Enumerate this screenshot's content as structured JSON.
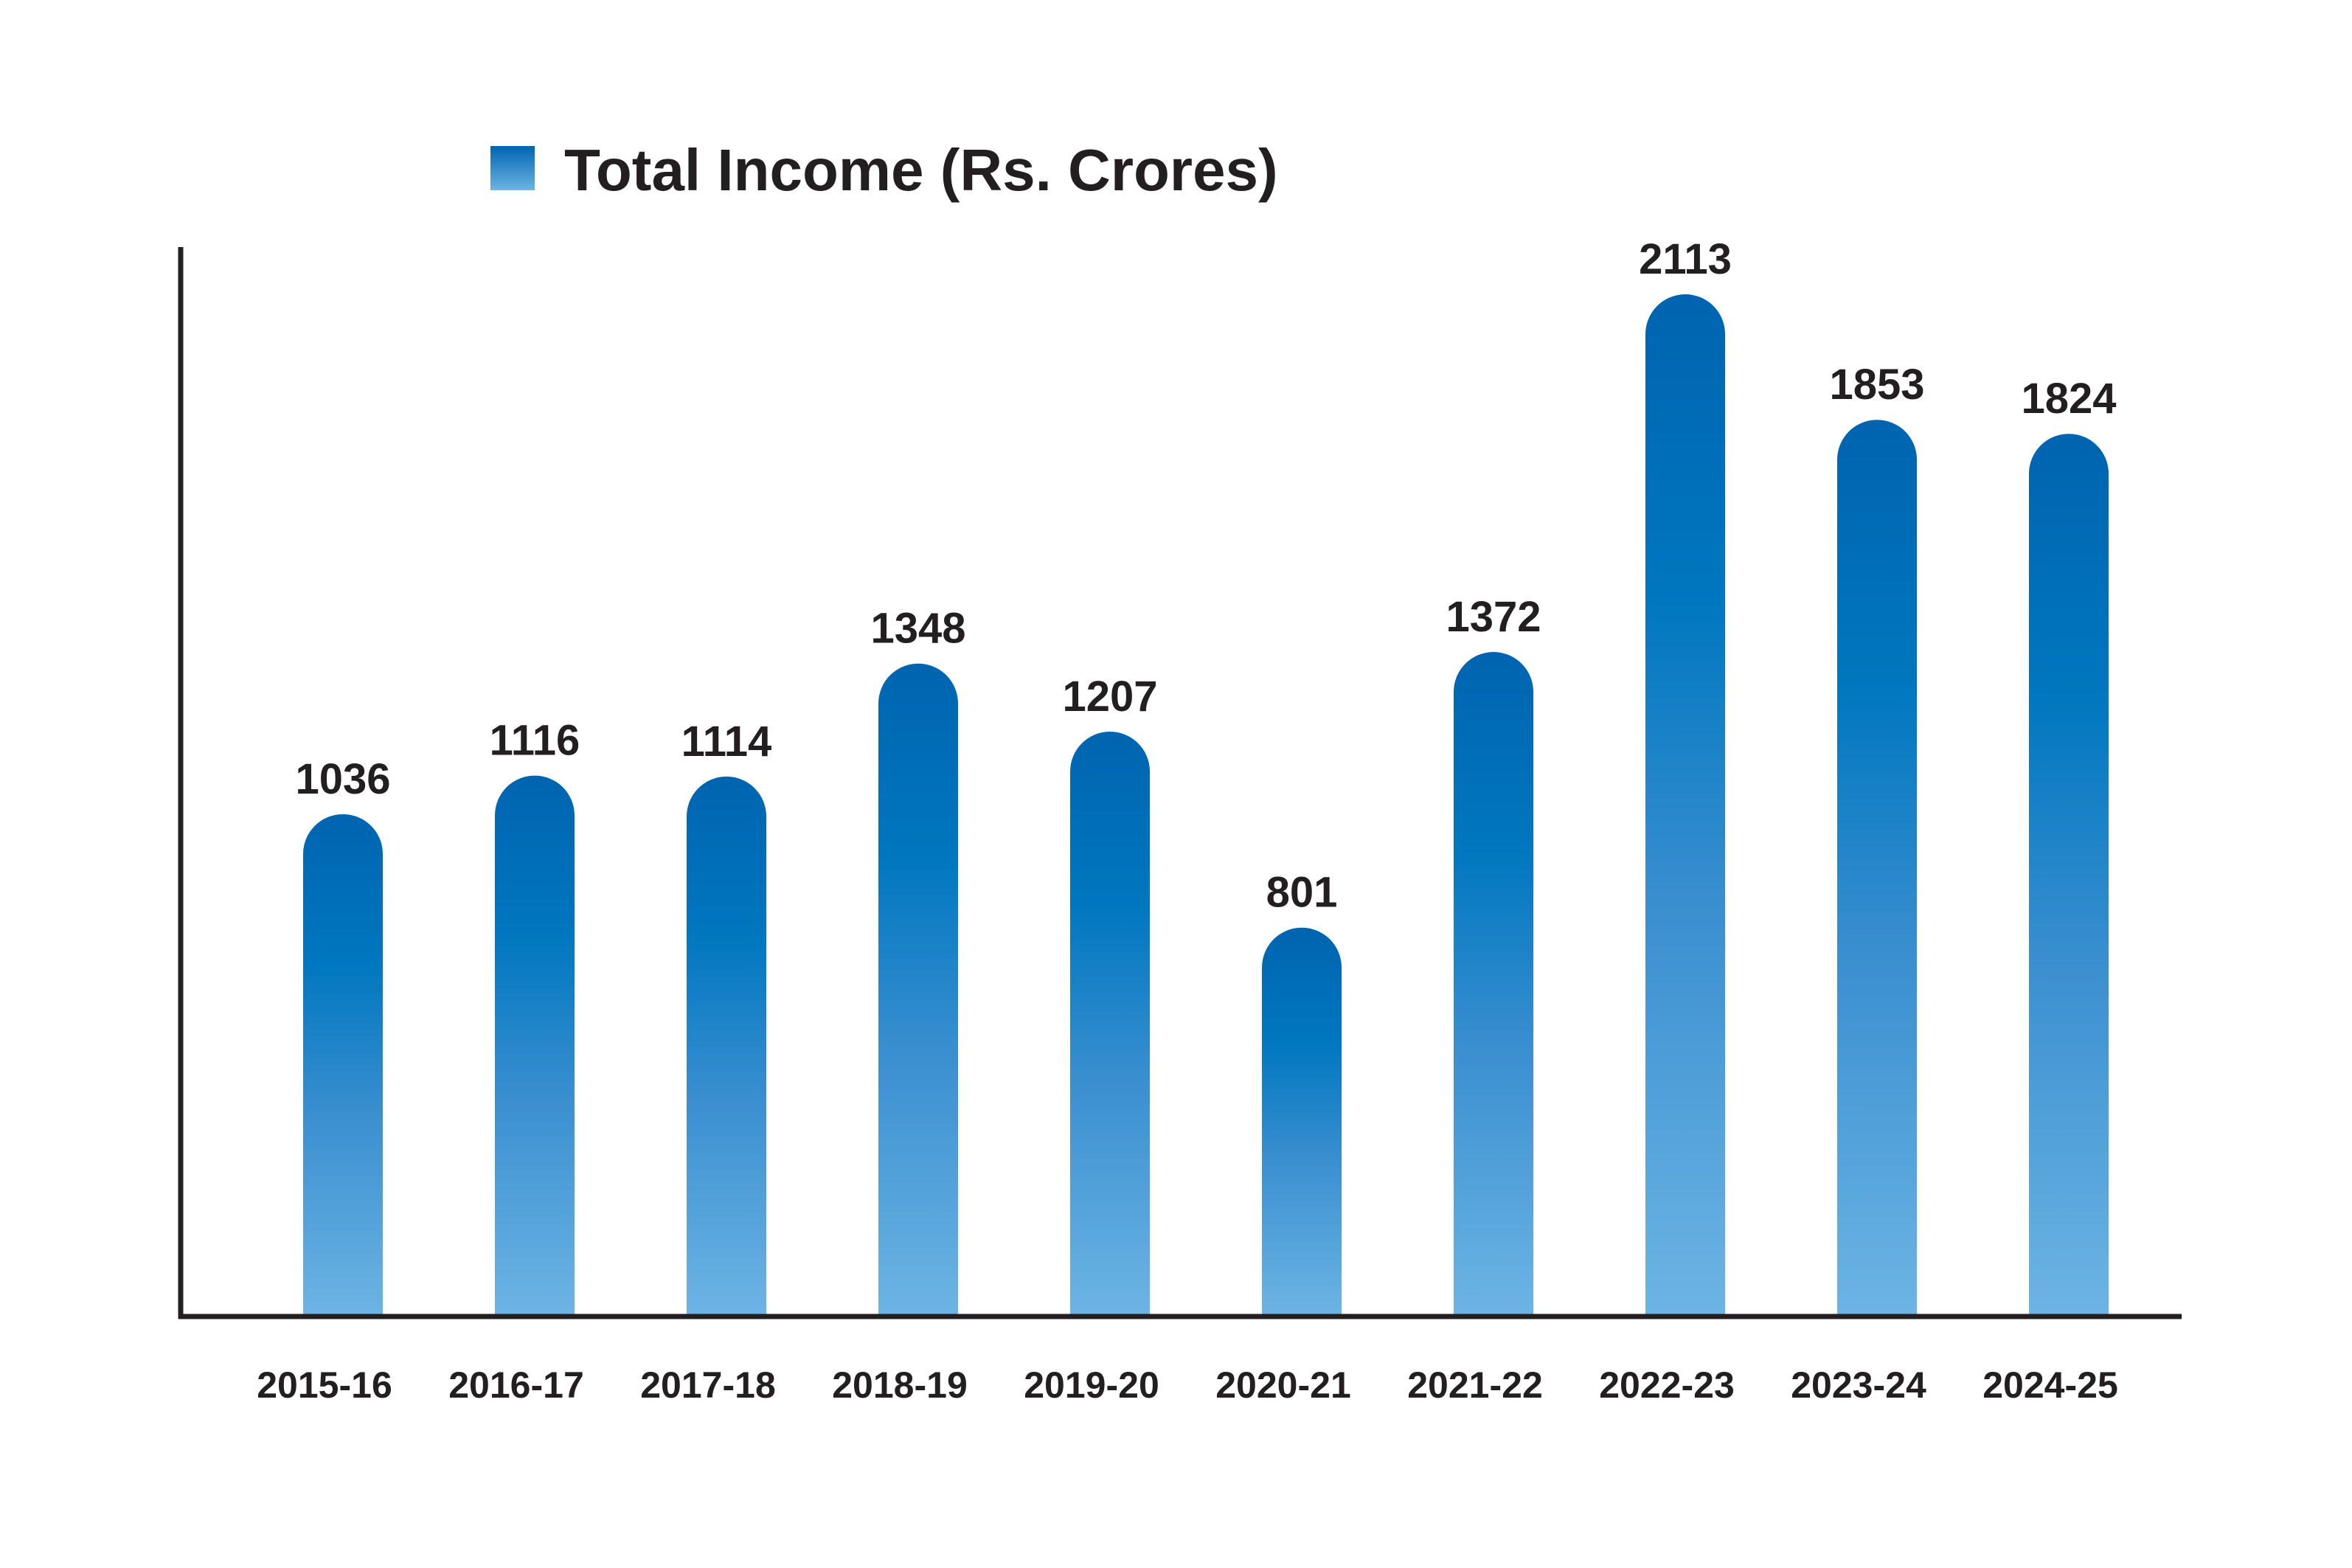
{
  "chart_data": {
    "type": "bar",
    "categories": [
      "2015-16",
      "2016-17",
      "2017-18",
      "2018-19",
      "2019-20",
      "2020-21",
      "2021-22",
      "2022-23",
      "2023-24",
      "2024-25"
    ],
    "series": [
      {
        "name": "Total Income (Rs. Crores)",
        "values": [
          1036,
          1116,
          1114,
          1348,
          1207,
          801,
          1372,
          2113,
          1853,
          1824
        ]
      }
    ],
    "title": "",
    "xlabel": "",
    "ylabel": "",
    "ylim": [
      0,
      2300
    ],
    "grid": false,
    "legend_position": "top-left",
    "data_labels": true,
    "colors": {
      "bar_top": "#0064b0",
      "bar_mid": "#0077c0",
      "bar_bottom": "#6cb4e4",
      "axis": "#231f20",
      "text": "#231f20"
    }
  }
}
